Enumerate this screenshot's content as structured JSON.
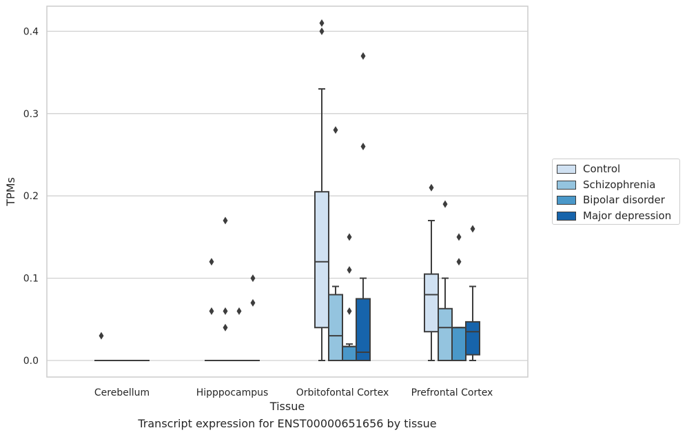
{
  "chart_data": {
    "type": "box",
    "xlabel": "Tissue",
    "ylabel": "TPMs",
    "ylim": [
      -0.02,
      0.43
    ],
    "yticks": [
      0.0,
      0.1,
      0.2,
      0.3,
      0.4
    ],
    "ytick_labels": [
      "0.0",
      "0.1",
      "0.2",
      "0.3",
      "0.4"
    ],
    "grid": "horizontal",
    "legend_position": "right",
    "categories": [
      "Cerebellum",
      "Hipppocampus",
      "Orbitofontal Cortex",
      "Prefrontal Cortex"
    ],
    "series": [
      {
        "name": "Control",
        "color": "#d0e1f2",
        "boxes": [
          {
            "whislo": 0,
            "q1": 0,
            "med": 0,
            "q3": 0,
            "whishi": 0,
            "fliers": [
              0.03
            ]
          },
          {
            "whislo": 0,
            "q1": 0,
            "med": 0,
            "q3": 0,
            "whishi": 0,
            "fliers": [
              0.12,
              0.06
            ]
          },
          {
            "whislo": 0,
            "q1": 0.04,
            "med": 0.12,
            "q3": 0.205,
            "whishi": 0.33,
            "fliers": [
              0.41,
              0.4
            ]
          },
          {
            "whislo": 0,
            "q1": 0.035,
            "med": 0.08,
            "q3": 0.105,
            "whishi": 0.17,
            "fliers": [
              0.21
            ]
          }
        ]
      },
      {
        "name": "Schizophrenia",
        "color": "#94c4df",
        "boxes": [
          {
            "whislo": 0,
            "q1": 0,
            "med": 0,
            "q3": 0,
            "whishi": 0,
            "fliers": []
          },
          {
            "whislo": 0,
            "q1": 0,
            "med": 0,
            "q3": 0,
            "whishi": 0,
            "fliers": [
              0.17,
              0.06,
              0.04
            ]
          },
          {
            "whislo": 0,
            "q1": 0,
            "med": 0.03,
            "q3": 0.08,
            "whishi": 0.09,
            "fliers": [
              0.28
            ]
          },
          {
            "whislo": 0,
            "q1": 0,
            "med": 0.04,
            "q3": 0.063,
            "whishi": 0.1,
            "fliers": [
              0.19
            ]
          }
        ]
      },
      {
        "name": "Bipolar disorder",
        "color": "#4a98c9",
        "boxes": [
          {
            "whislo": 0,
            "q1": 0,
            "med": 0,
            "q3": 0,
            "whishi": 0,
            "fliers": []
          },
          {
            "whislo": 0,
            "q1": 0,
            "med": 0,
            "q3": 0,
            "whishi": 0,
            "fliers": [
              0.06
            ]
          },
          {
            "whislo": 0,
            "q1": 0,
            "med": 0.017,
            "q3": 0.017,
            "whishi": 0.02,
            "fliers": [
              0.15,
              0.11,
              0.06
            ]
          },
          {
            "whislo": 0,
            "q1": 0,
            "med": 0.04,
            "q3": 0.04,
            "whishi": 0.04,
            "fliers": [
              0.15,
              0.12
            ]
          }
        ]
      },
      {
        "name": "Major depression",
        "color": "#1764ab",
        "boxes": [
          {
            "whislo": 0,
            "q1": 0,
            "med": 0,
            "q3": 0,
            "whishi": 0,
            "fliers": []
          },
          {
            "whislo": 0,
            "q1": 0,
            "med": 0,
            "q3": 0,
            "whishi": 0,
            "fliers": [
              0.1,
              0.07
            ]
          },
          {
            "whislo": 0,
            "q1": 0,
            "med": 0.01,
            "q3": 0.075,
            "whishi": 0.1,
            "fliers": [
              0.37,
              0.26
            ]
          },
          {
            "whislo": 0,
            "q1": 0.007,
            "med": 0.035,
            "q3": 0.047,
            "whishi": 0.09,
            "fliers": [
              0.16
            ]
          }
        ]
      }
    ],
    "caption": "Transcript expression for ENST00000651656 by tissue"
  }
}
